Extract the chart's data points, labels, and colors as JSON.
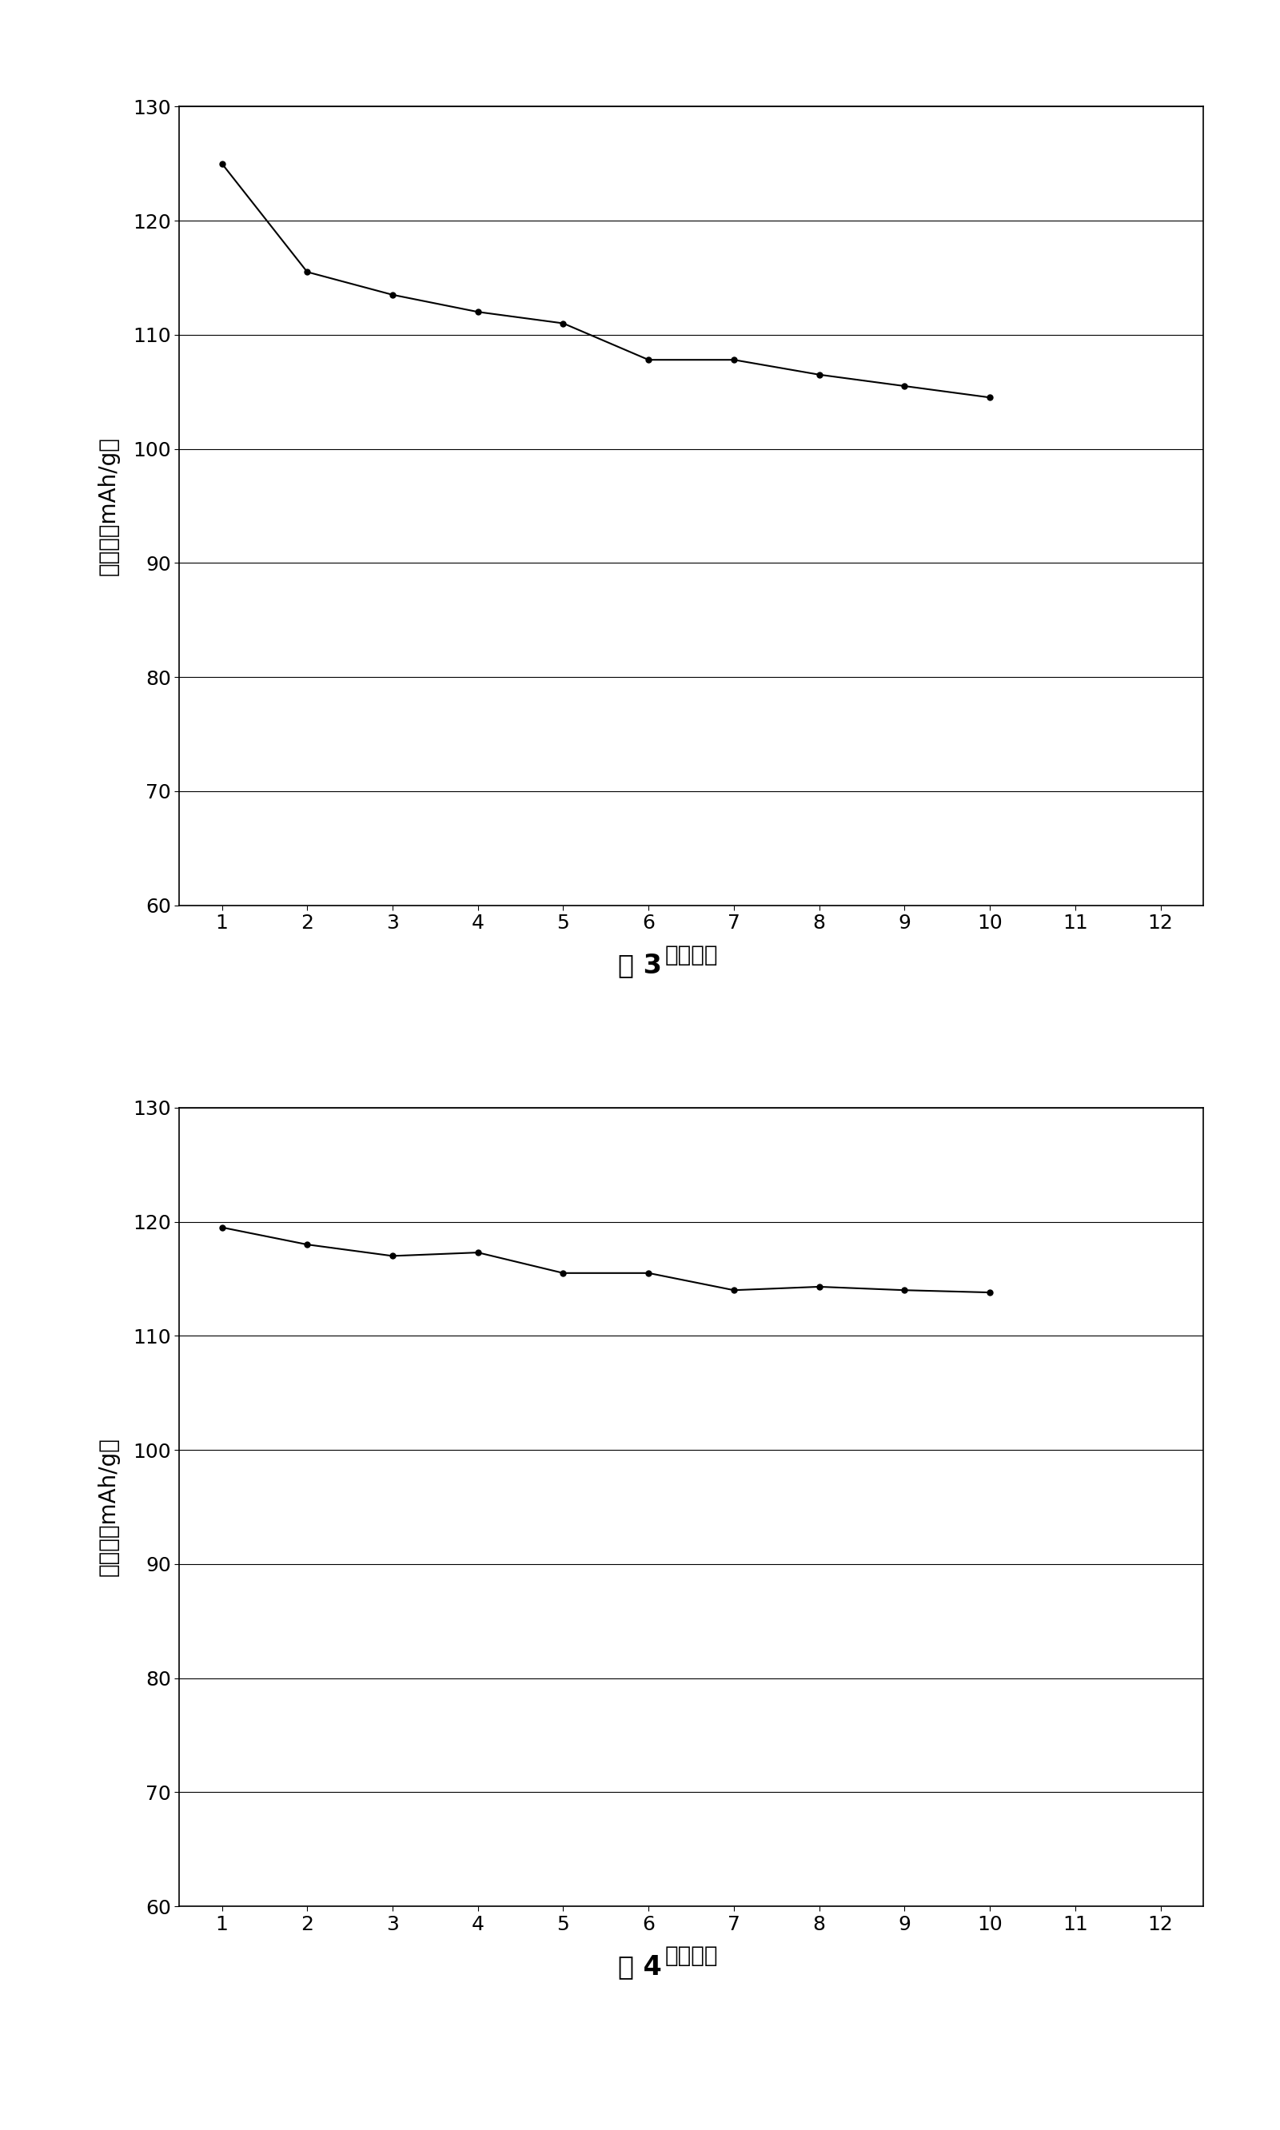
{
  "fig3": {
    "x": [
      1,
      2,
      3,
      4,
      5,
      6,
      7,
      8,
      9,
      10
    ],
    "y": [
      125.0,
      115.5,
      113.5,
      112.0,
      111.0,
      107.8,
      107.8,
      106.5,
      105.5,
      104.5
    ],
    "xlabel": "循环次数",
    "ylabel": "比容量（mAh/g）",
    "title": "图 3",
    "ylim": [
      60,
      130
    ],
    "xlim": [
      0.5,
      12.5
    ],
    "yticks": [
      60,
      70,
      80,
      90,
      100,
      110,
      120,
      130
    ],
    "xticks": [
      1,
      2,
      3,
      4,
      5,
      6,
      7,
      8,
      9,
      10,
      11,
      12
    ],
    "line_color": "#000000",
    "marker": "o",
    "markersize": 5
  },
  "fig4": {
    "x": [
      1,
      2,
      3,
      4,
      5,
      6,
      7,
      8,
      9,
      10
    ],
    "y": [
      119.5,
      118.0,
      117.0,
      117.3,
      115.5,
      115.5,
      114.0,
      114.3,
      114.0,
      113.8
    ],
    "xlabel": "循环次数",
    "ylabel": "比容量（mAh/g）",
    "title": "图 4",
    "ylim": [
      60,
      130
    ],
    "xlim": [
      0.5,
      12.5
    ],
    "yticks": [
      60,
      70,
      80,
      90,
      100,
      110,
      120,
      130
    ],
    "xticks": [
      1,
      2,
      3,
      4,
      5,
      6,
      7,
      8,
      9,
      10,
      11,
      12
    ],
    "line_color": "#000000",
    "marker": "o",
    "markersize": 5
  },
  "background_color": "#ffffff",
  "plot_bg_color": "#ffffff",
  "font_size_label": 20,
  "font_size_tick": 18,
  "font_size_title": 22,
  "font_size_caption": 24
}
